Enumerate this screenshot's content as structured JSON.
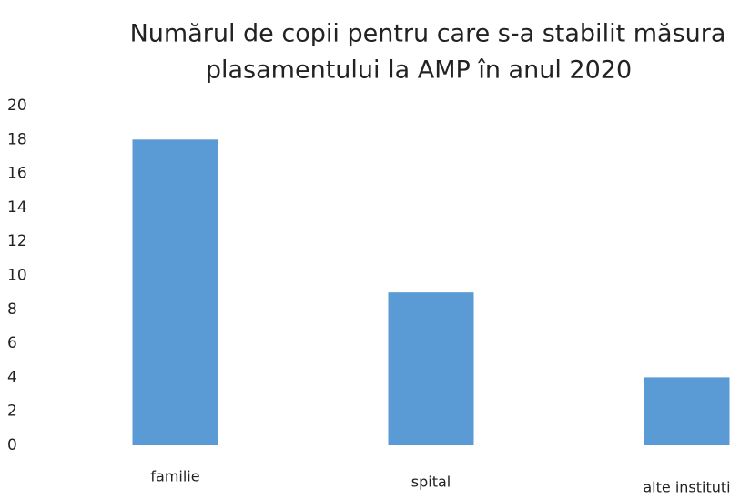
{
  "chart_data": {
    "type": "bar",
    "title": [
      "Numărul de copii pentru care s-a stabilit măsura",
      "plasamentului la AMP în anul 2020"
    ],
    "categories": [
      "familie",
      "spital",
      "alte instituti"
    ],
    "values": [
      18,
      9,
      4
    ],
    "color": "#5b9bd5",
    "ylim": [
      0,
      20
    ],
    "yticks": [
      0,
      2,
      4,
      6,
      8,
      10,
      12,
      14,
      16,
      18,
      20
    ],
    "grid": false
  }
}
